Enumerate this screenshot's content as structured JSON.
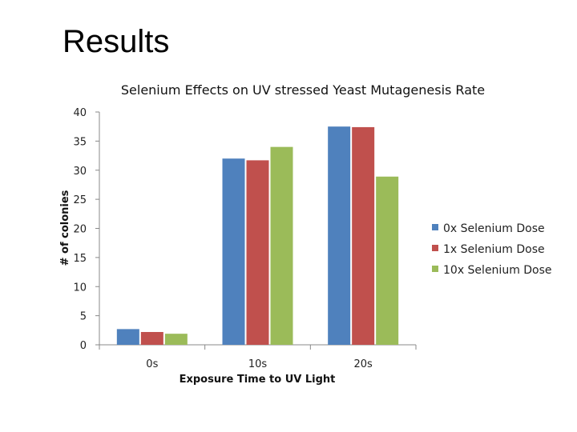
{
  "slide": {
    "title": "Results"
  },
  "chart_data": {
    "type": "bar",
    "title": "Selenium Effects on UV stressed Yeast Mutagenesis Rate",
    "xlabel": "Exposure Time to UV Light",
    "ylabel": "# of colonies",
    "categories": [
      "0s",
      "10s",
      "20s"
    ],
    "series": [
      {
        "name": "0x Selenium Dose",
        "color": "#4F81BD",
        "values": [
          2.7,
          32,
          37.5
        ]
      },
      {
        "name": "1x Selenium Dose",
        "color": "#C0504D",
        "values": [
          2.2,
          31.7,
          37.4
        ]
      },
      {
        "name": "10x Selenium Dose",
        "color": "#9BBB59",
        "values": [
          1.9,
          34,
          28.9
        ]
      }
    ],
    "ylim": [
      0,
      40
    ],
    "yticks": [
      "0",
      "5",
      "10",
      "15",
      "20",
      "25",
      "30",
      "35",
      "40"
    ],
    "grid": false,
    "legend": "right"
  }
}
